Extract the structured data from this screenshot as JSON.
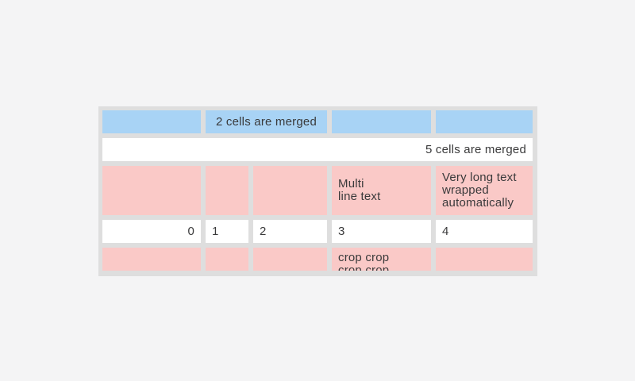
{
  "page": {
    "background_color": "#f4f4f5"
  },
  "table": {
    "columns": 5,
    "colors": {
      "cell_blue": "#a8d3f5",
      "cell_pink": "#fac9c7",
      "cell_white": "#ffffff",
      "grid_gap_gray": "#dedede",
      "text": "#3a3a3b"
    },
    "rows": [
      {
        "name": "blue-header-row",
        "cells": [
          {
            "text": "",
            "span": 1
          },
          {
            "text": "2 cells are merged",
            "span": 2,
            "align": "center"
          },
          {
            "text": "",
            "span": 1
          },
          {
            "text": "",
            "span": 1
          }
        ]
      },
      {
        "name": "full-merged-row",
        "cells": [
          {
            "text": "5 cells are merged",
            "span": 5,
            "align": "right"
          }
        ]
      },
      {
        "name": "multiline-row",
        "cells": [
          {
            "text": ""
          },
          {
            "text": ""
          },
          {
            "text": ""
          },
          {
            "text": "Multi\nline text"
          },
          {
            "text": "Very long text wrapped automatically"
          }
        ]
      },
      {
        "name": "number-row",
        "cells": [
          {
            "text": "0",
            "align": "right"
          },
          {
            "text": "1"
          },
          {
            "text": "2"
          },
          {
            "text": "3"
          },
          {
            "text": "4"
          }
        ]
      },
      {
        "name": "cropped-row",
        "cells": [
          {
            "text": ""
          },
          {
            "text": ""
          },
          {
            "text": ""
          },
          {
            "text": "crop crop crop crop",
            "cropped": true
          },
          {
            "text": ""
          }
        ]
      }
    ]
  }
}
